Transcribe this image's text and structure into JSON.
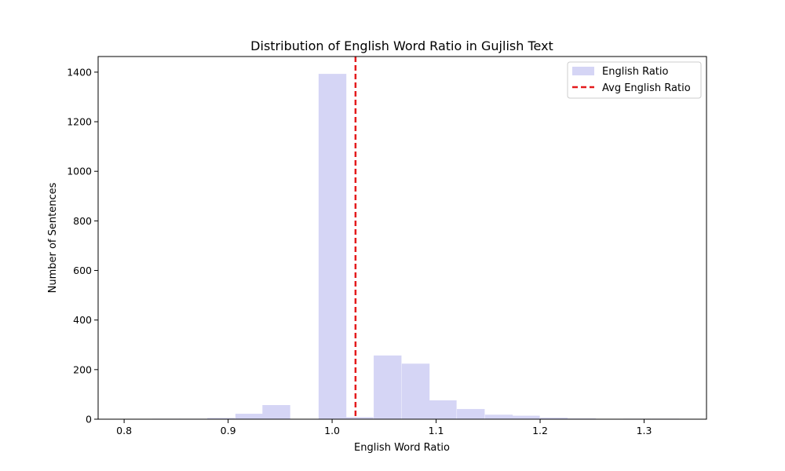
{
  "chart_data": {
    "type": "bar",
    "title": "Distribution of English Word Ratio in Gujlish Text",
    "xlabel": "English Word Ratio",
    "ylabel": "Number of Sentences",
    "xlim": [
      0.775,
      1.36
    ],
    "ylim": [
      0,
      1463
    ],
    "xticks": [
      0.8,
      0.9,
      1.0,
      1.1,
      1.2,
      1.3
    ],
    "xtick_labels": [
      "0.8",
      "0.9",
      "1.0",
      "1.1",
      "1.2",
      "1.3"
    ],
    "yticks": [
      0,
      200,
      400,
      600,
      800,
      1000,
      1200,
      1400
    ],
    "ytick_labels": [
      "0",
      "200",
      "400",
      "600",
      "800",
      "1000",
      "1200",
      "1400"
    ],
    "bin_width": 0.0267,
    "bin_starts": [
      0.8,
      0.827,
      0.853,
      0.88,
      0.907,
      0.933,
      0.96,
      0.987,
      1.013,
      1.04,
      1.067,
      1.093,
      1.12,
      1.147,
      1.173,
      1.2,
      1.227,
      1.253,
      1.28,
      1.307
    ],
    "values": [
      1,
      2,
      2,
      5,
      22,
      57,
      0,
      1393,
      8,
      257,
      224,
      76,
      41,
      18,
      14,
      6,
      3,
      0,
      2,
      2
    ],
    "average_line": {
      "x": 1.0225,
      "label": "Avg English Ratio",
      "color": "#e41a1c"
    },
    "series_label": "English Ratio",
    "bar_color": "#d5d5f5",
    "legend_position": "upper right",
    "grid": false
  }
}
